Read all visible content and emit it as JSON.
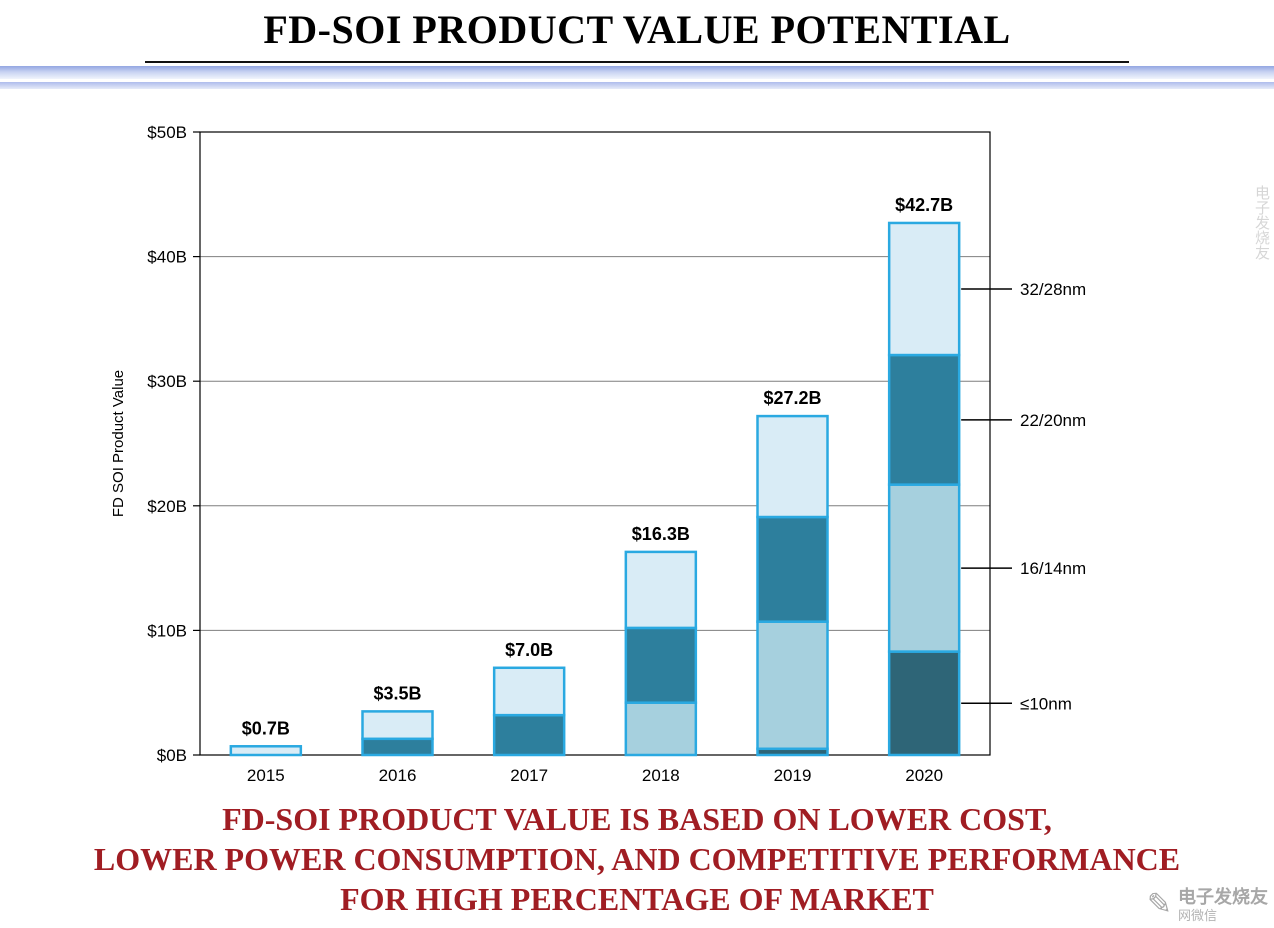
{
  "header": {
    "title": "FD-SOI PRODUCT VALUE POTENTIAL"
  },
  "footer": {
    "line1": "FD-SOI PRODUCT VALUE IS BASED ON LOWER COST,",
    "line2": "LOWER POWER CONSUMPTION, AND COMPETITIVE PERFORMANCE",
    "line3": "FOR HIGH PERCENTAGE OF MARKET"
  },
  "watermark": {
    "brand": "电子发烧友",
    "sub": "网微信"
  },
  "chart_data": {
    "type": "bar",
    "stacked": true,
    "title": "",
    "xlabel": "",
    "ylabel": "FD SOI Product Value",
    "ylim": [
      0,
      50
    ],
    "ytick_interval": 10,
    "ytick_labels": [
      "$0B",
      "$10B",
      "$20B",
      "$30B",
      "$40B",
      "$50B"
    ],
    "categories": [
      "2015",
      "2016",
      "2017",
      "2018",
      "2019",
      "2020"
    ],
    "totals": [
      0.7,
      3.5,
      7.0,
      16.3,
      27.2,
      42.7
    ],
    "totals_labels": [
      "$0.7B",
      "$3.5B",
      "$7.0B",
      "$16.3B",
      "$27.2B",
      "$42.7B"
    ],
    "series": [
      {
        "name": "≤10nm",
        "color": "#2e6577",
        "values": [
          0,
          0,
          0,
          0,
          0.5,
          8.3
        ]
      },
      {
        "name": "16/14nm",
        "color": "#a6d0de",
        "values": [
          0,
          0,
          0,
          4.2,
          10.2,
          13.4
        ]
      },
      {
        "name": "22/20nm",
        "color": "#2d7f9d",
        "values": [
          0,
          1.3,
          3.2,
          6.0,
          8.4,
          10.4
        ]
      },
      {
        "name": "32/28nm",
        "color": "#d9ecf6",
        "values": [
          0.7,
          2.2,
          3.8,
          6.1,
          8.1,
          10.6
        ]
      }
    ],
    "bar_border_color": "#2aa9e1",
    "annotations": [
      {
        "label": "32/28nm"
      },
      {
        "label": "22/20nm"
      },
      {
        "label": "16/14nm"
      },
      {
        "label": "≤10nm"
      }
    ],
    "grid": true,
    "legend_position": "right-annotation-callouts"
  }
}
